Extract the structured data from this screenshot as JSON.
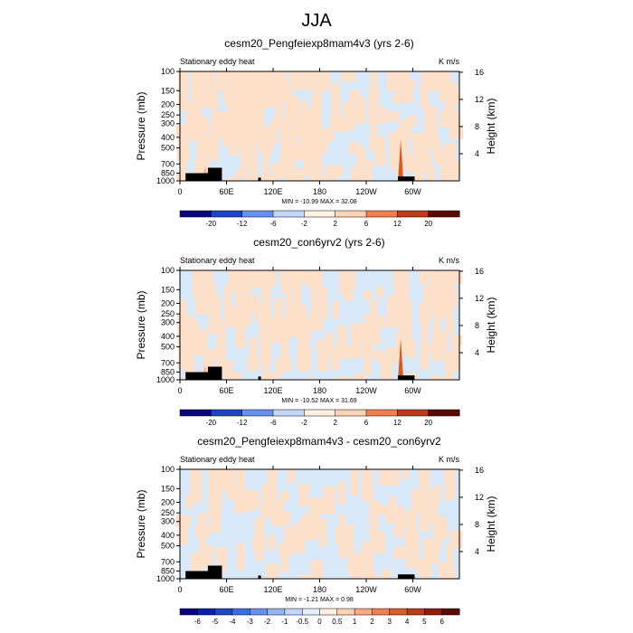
{
  "page_title": "JJA",
  "colors": {
    "field_cool": "#d7e8f8",
    "field_warm": "#fce0ca",
    "field_hot": "#e0571b",
    "terrain": "#000000",
    "palette": [
      "#08067a",
      "#0d1fa8",
      "#1e44c8",
      "#3a6ee3",
      "#6592ee",
      "#93b4f5",
      "#c2d6fa",
      "#e4efff",
      "#fff0e2",
      "#fcd2b4",
      "#f8aa80",
      "#f07f4f",
      "#de5a29",
      "#c0381a",
      "#8f1d0c",
      "#5a0a05"
    ]
  },
  "chart_data": [
    {
      "type": "heatmap",
      "title": "cesm20_Pengfeiexp8mam4v3 (yrs 2-6)",
      "left_string": "Stationary eddy heat",
      "units": "K m/s",
      "ylabel": "Pressure (mb)",
      "ylabel_right": "Height (km)",
      "x_ticks": [
        "0",
        "60E",
        "120E",
        "180",
        "120W",
        "60W"
      ],
      "y_ticks": [
        "100",
        "150",
        "200",
        "250",
        "300",
        "400",
        "500",
        "700",
        "850",
        "1000"
      ],
      "y_ticks_right": [
        "16",
        "12",
        "8",
        "4"
      ],
      "minmax": "MIN = -10.99  MAX =  32.08",
      "colorbar_labels": [
        "-20",
        "-12",
        "-6",
        "-2",
        "2",
        "6",
        "12",
        "20"
      ]
    },
    {
      "type": "heatmap",
      "title": "cesm20_con6yrv2 (yrs 2-6)",
      "left_string": "Stationary eddy heat",
      "units": "K m/s",
      "ylabel": "Pressure (mb)",
      "ylabel_right": "Height (km)",
      "x_ticks": [
        "0",
        "60E",
        "120E",
        "180",
        "120W",
        "60W"
      ],
      "y_ticks": [
        "100",
        "150",
        "200",
        "250",
        "300",
        "400",
        "500",
        "700",
        "850",
        "1000"
      ],
      "y_ticks_right": [
        "16",
        "12",
        "8",
        "4"
      ],
      "minmax": "MIN = -10.52  MAX =  31.69",
      "colorbar_labels": [
        "-20",
        "-12",
        "-6",
        "-2",
        "2",
        "6",
        "12",
        "20"
      ]
    },
    {
      "type": "heatmap",
      "title": "cesm20_Pengfeiexp8mam4v3 - cesm20_con6yrv2",
      "left_string": "Stationary eddy heat",
      "units": "K m/s",
      "ylabel": "Pressure (mb)",
      "ylabel_right": "Height (km)",
      "x_ticks": [
        "0",
        "60E",
        "120E",
        "180",
        "120W",
        "60W"
      ],
      "y_ticks": [
        "100",
        "150",
        "200",
        "250",
        "300",
        "400",
        "500",
        "700",
        "850",
        "1000"
      ],
      "y_ticks_right": [
        "16",
        "12",
        "8",
        "4"
      ],
      "minmax": "MIN =  -1.21  MAX =   0.98",
      "colorbar_labels": [
        "-6",
        "-5",
        "-4",
        "-3",
        "-2",
        "-1",
        "-0.5",
        "0",
        "0.5",
        "1",
        "2",
        "3",
        "4",
        "5",
        "6"
      ]
    }
  ]
}
